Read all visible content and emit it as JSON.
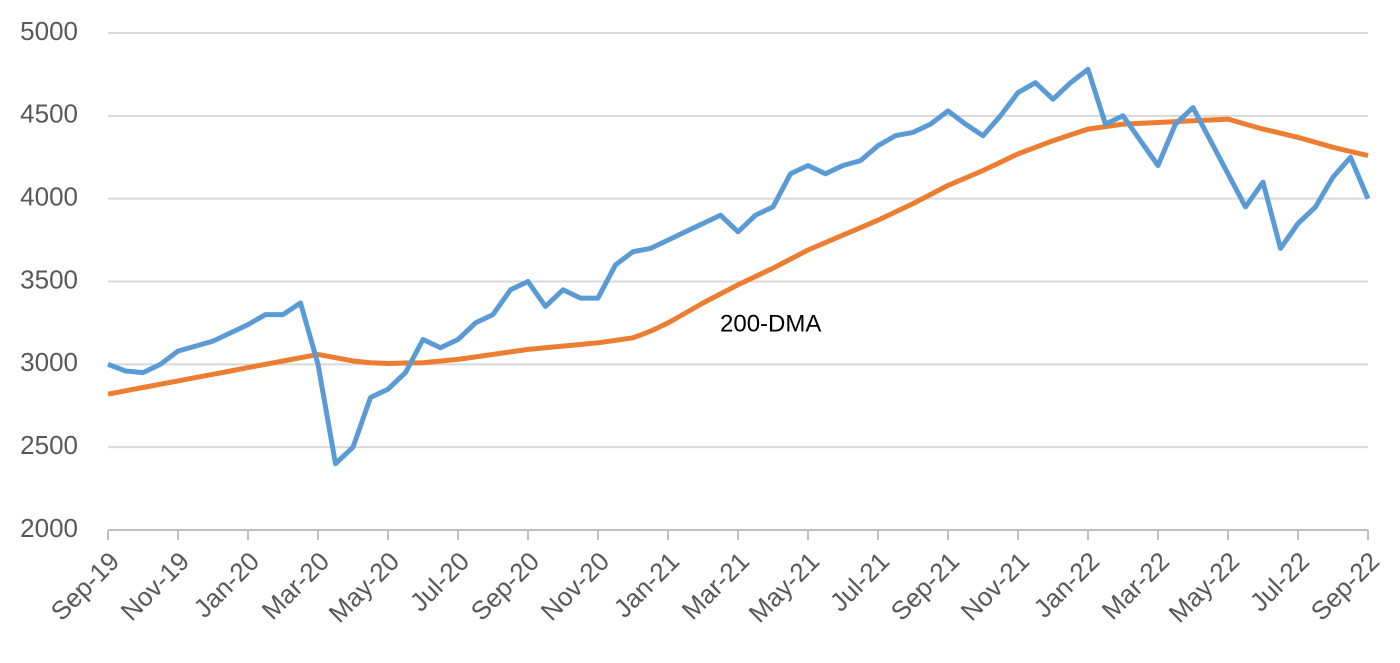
{
  "chart_data": {
    "type": "line",
    "annotations": [
      "200-DMA"
    ],
    "categories": [
      "Sep-19",
      null,
      null,
      null,
      "Nov-19",
      null,
      null,
      null,
      "Jan-20",
      null,
      null,
      null,
      "Mar-20",
      null,
      null,
      null,
      "May-20",
      null,
      null,
      null,
      "Jul-20",
      null,
      null,
      null,
      "Sep-20",
      null,
      null,
      null,
      "Nov-20",
      null,
      null,
      null,
      "Jan-21",
      null,
      null,
      null,
      "Mar-21",
      null,
      null,
      null,
      "May-21",
      null,
      null,
      null,
      "Jul-21",
      null,
      null,
      null,
      "Sep-21",
      null,
      null,
      null,
      "Nov-21",
      null,
      null,
      null,
      "Jan-22",
      null,
      null,
      null,
      "Mar-22",
      null,
      null,
      null,
      "May-22",
      null,
      null,
      null,
      "Jul-22",
      null,
      null,
      null,
      "Sep-22"
    ],
    "series": [
      {
        "color": "#5b9bd5",
        "values": [
          3000,
          2960,
          2950,
          3000,
          3080,
          3110,
          3140,
          3190,
          3240,
          3300,
          3300,
          3370,
          3000,
          2400,
          2500,
          2800,
          2850,
          2950,
          3150,
          3100,
          3150,
          3250,
          3300,
          3450,
          3500,
          3350,
          3450,
          3400,
          3400,
          3600,
          3680,
          3700,
          3750,
          3800,
          3850,
          3900,
          3800,
          3900,
          3950,
          4150,
          4200,
          4150,
          4200,
          4230,
          4320,
          4380,
          4400,
          4450,
          4530,
          4450,
          4380,
          4500,
          4640,
          4700,
          4600,
          4700,
          4780,
          4450,
          4500,
          4350,
          4200,
          4450,
          4550,
          4350,
          4150,
          3950,
          4100,
          3700,
          3850,
          3950,
          4130,
          4250,
          4000
        ]
      },
      {
        "color": "#ed7d31",
        "values": [
          2820,
          2840,
          2860,
          2880,
          2900,
          2920,
          2940,
          2960,
          2980,
          3000,
          3020,
          3040,
          3060,
          3040,
          3020,
          3010,
          3005,
          3008,
          3010,
          3020,
          3030,
          3045,
          3060,
          3075,
          3090,
          3100,
          3110,
          3120,
          3130,
          3145,
          3160,
          3200,
          3250,
          3310,
          3370,
          3425,
          3480,
          3530,
          3580,
          3635,
          3690,
          3735,
          3780,
          3825,
          3870,
          3920,
          3970,
          4025,
          4080,
          4125,
          4170,
          4220,
          4270,
          4310,
          4350,
          4385,
          4420,
          4435,
          4450,
          4455,
          4460,
          4465,
          4470,
          4475,
          4480,
          4450,
          4420,
          4395,
          4370,
          4340,
          4310,
          4285,
          4260
        ]
      }
    ],
    "ylim": [
      2000,
      5000
    ],
    "yticks": [
      2000,
      2500,
      3000,
      3500,
      4000,
      4500,
      5000
    ],
    "grid": true
  }
}
